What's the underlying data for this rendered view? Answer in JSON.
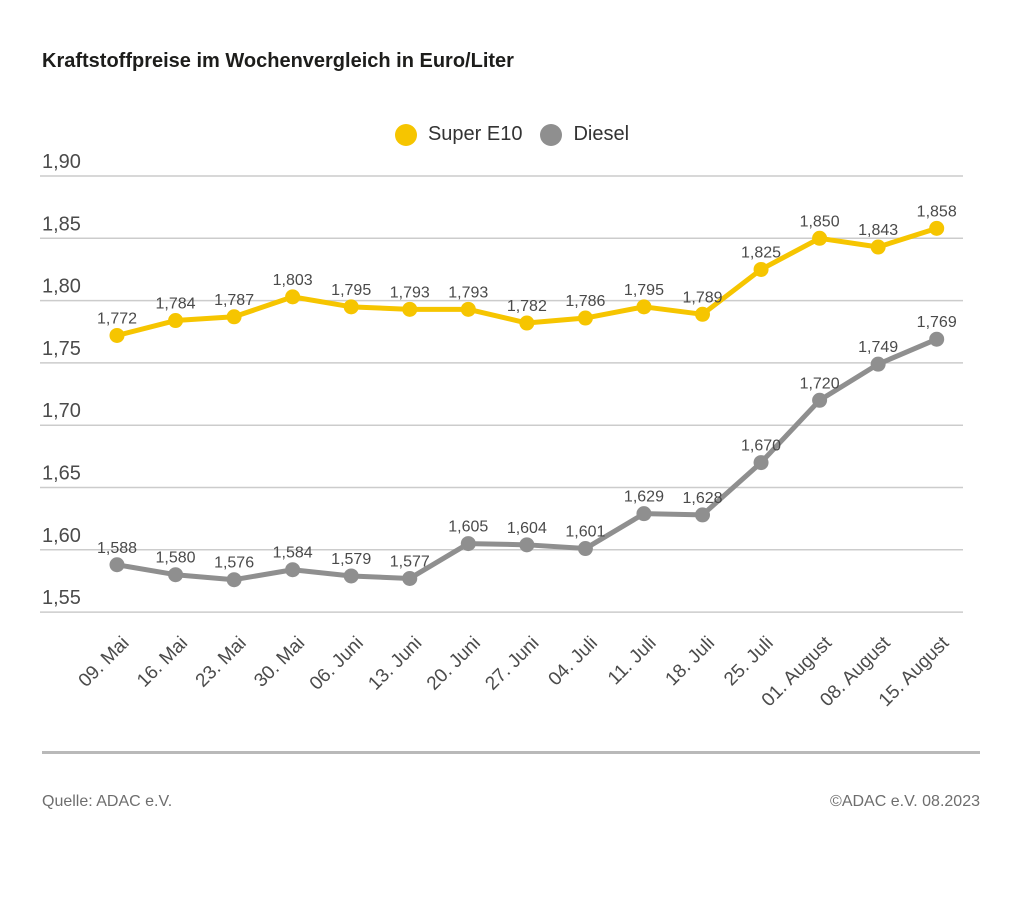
{
  "title": "Kraftstoffpreise im Wochenvergleich in Euro/Liter",
  "footer": {
    "source": "Quelle: ADAC e.V.",
    "copyright": "©ADAC e.V. 08.2023"
  },
  "colors": {
    "super_e10": "#F6C500",
    "diesel": "#8F8F8F",
    "grid": "#CCCCCC",
    "axis_label": "#4B4B4B",
    "value_label": "#4A4A4A",
    "separator": "#B9B9B9",
    "title_text": "#1D1D1B",
    "footer_text": "#6E6E6E"
  },
  "chart_data": {
    "type": "line",
    "title": "Kraftstoffpreise im Wochenvergleich in Euro/Liter",
    "unit": "Euro/Liter",
    "categories": [
      "09. Mai",
      "16. Mai",
      "23. Mai",
      "30. Mai",
      "06. Juni",
      "13. Juni",
      "20. Juni",
      "27. Juni",
      "04. Juli",
      "11. Juli",
      "18. Juli",
      "25. Juli",
      "01. August",
      "08. August",
      "15. August"
    ],
    "series": [
      {
        "id": "super-e10",
        "name": "Super E10",
        "color": "#F6C500",
        "values": [
          1.772,
          1.784,
          1.787,
          1.803,
          1.795,
          1.793,
          1.793,
          1.782,
          1.786,
          1.795,
          1.789,
          1.825,
          1.85,
          1.843,
          1.858
        ]
      },
      {
        "id": "diesel",
        "name": "Diesel",
        "color": "#8F8F8F",
        "values": [
          1.588,
          1.58,
          1.576,
          1.584,
          1.579,
          1.577,
          1.605,
          1.604,
          1.601,
          1.629,
          1.628,
          1.67,
          1.72,
          1.749,
          1.769
        ]
      }
    ],
    "ylim": [
      1.55,
      1.9
    ],
    "ytick_step": 0.05,
    "ytick_labels": [
      "1,90",
      "1,85",
      "1,80",
      "1,75",
      "1,70",
      "1,65",
      "1,60",
      "1,55"
    ],
    "grid": true,
    "legend_position": "top-center",
    "x_label_rotation_deg": -45,
    "decimal_separator": ","
  }
}
